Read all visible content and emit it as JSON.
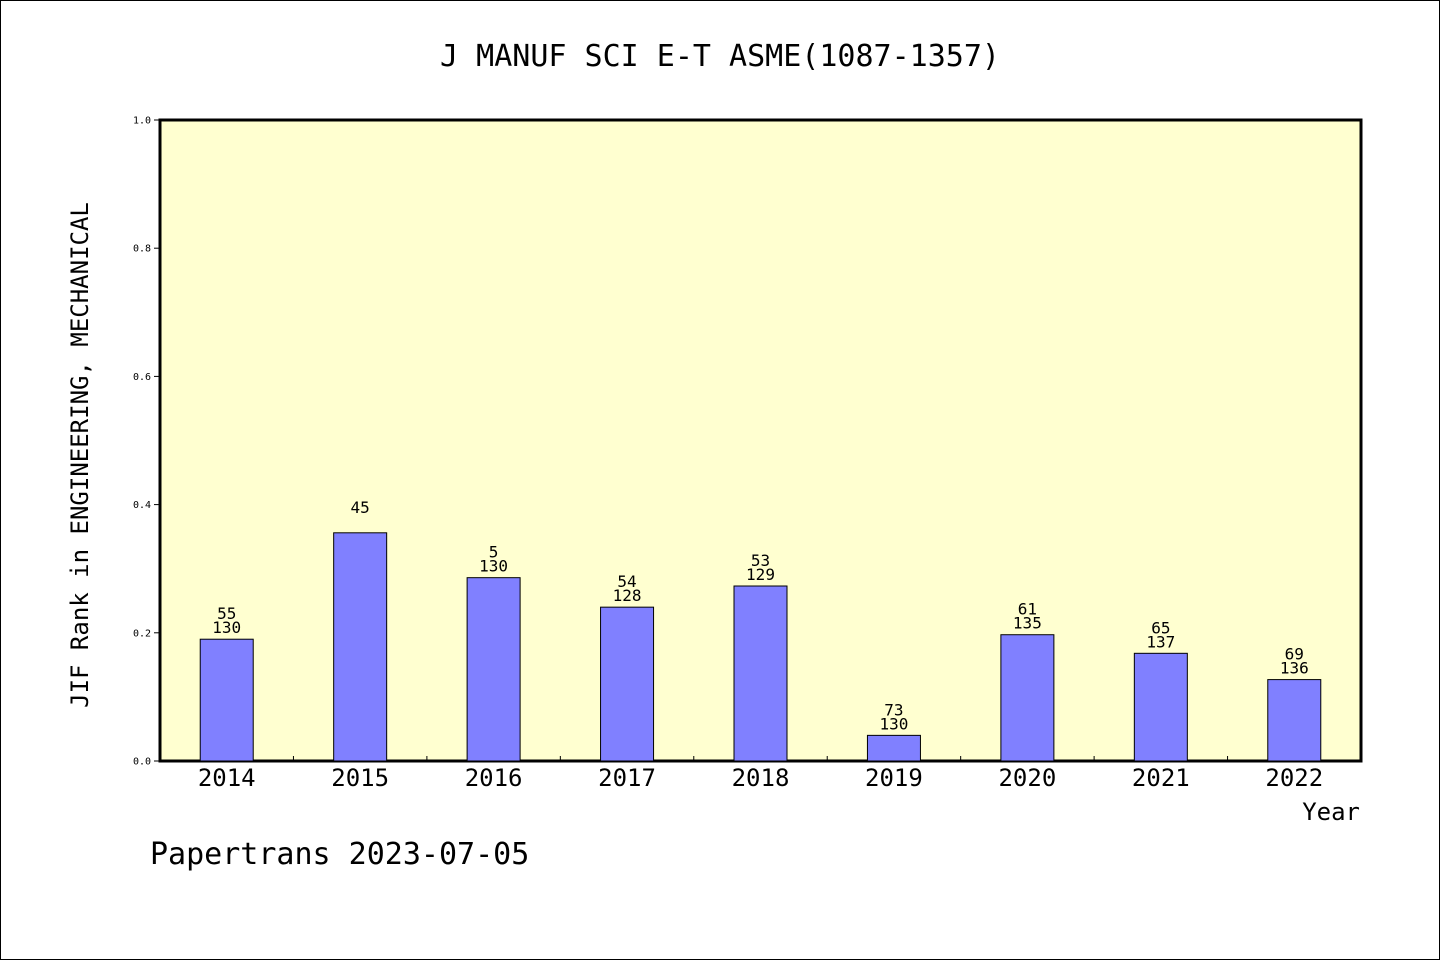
{
  "chart_data": {
    "type": "bar",
    "title": "J MANUF SCI E-T ASME(1087-1357)",
    "xlabel": "Year",
    "ylabel": "JIF Rank in ENGINEERING, MECHANICAL",
    "ylim": [
      0,
      1.0
    ],
    "yticks": [
      "0.0",
      "0.2",
      "0.4",
      "0.6",
      "0.8",
      "1.0"
    ],
    "grid": false,
    "plot_background": "#FFFFD0",
    "bar_color": "#8080FF",
    "categories": [
      "2014",
      "2015",
      "2016",
      "2017",
      "2018",
      "2019",
      "2020",
      "2021",
      "2022"
    ],
    "values": [
      0.19,
      0.356,
      0.286,
      0.24,
      0.273,
      0.04,
      0.197,
      0.168,
      0.127
    ],
    "labels": [
      {
        "rank": "55",
        "total": "130"
      },
      {
        "rank": "45",
        "total": ""
      },
      {
        "rank": "5",
        "total": "130"
      },
      {
        "rank": "54",
        "total": "128"
      },
      {
        "rank": "53",
        "total": "129"
      },
      {
        "rank": "73",
        "total": "130"
      },
      {
        "rank": "61",
        "total": "135"
      },
      {
        "rank": "65",
        "total": "137"
      },
      {
        "rank": "69",
        "total": "136"
      }
    ]
  },
  "footer": "Papertrans 2023-07-05"
}
